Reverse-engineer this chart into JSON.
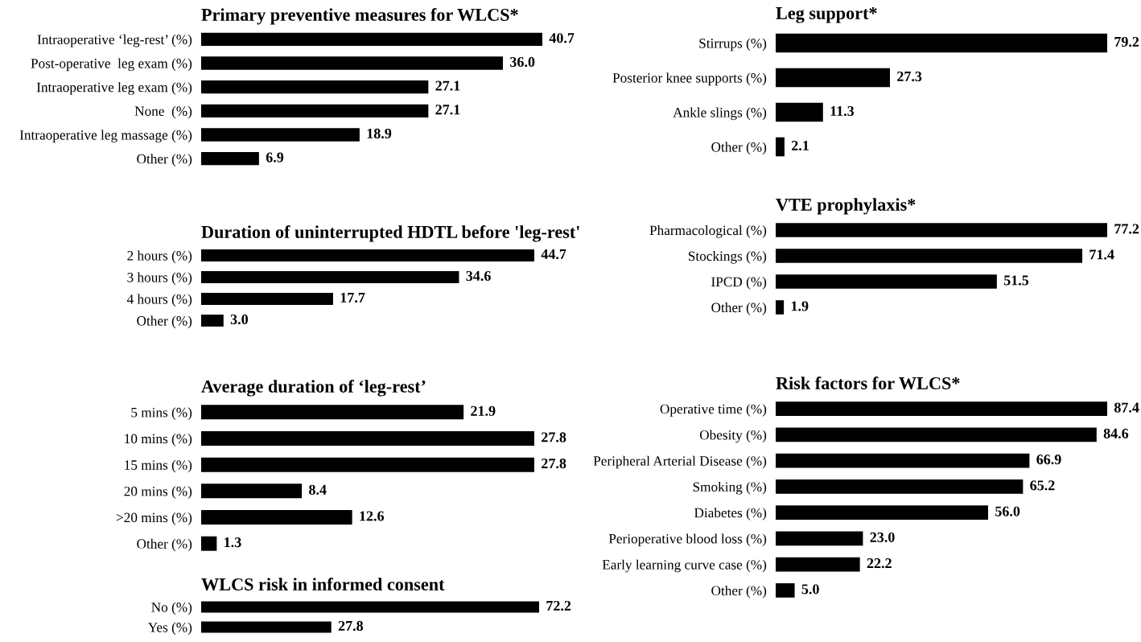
{
  "chart_data": [
    {
      "type": "bar",
      "orientation": "horizontal",
      "title": "Primary preventive measures for WLCS*",
      "categories": [
        "Intraoperative ‘leg-rest’ (%)",
        "Post-operative  leg exam (%)",
        "Intraoperative leg exam (%)",
        "None  (%)",
        "Intraoperative leg massage (%)",
        "Other (%)"
      ],
      "values": [
        40.7,
        36.0,
        27.1,
        27.1,
        18.9,
        6.9
      ],
      "value_labels": [
        "40.7",
        "36.0",
        "27.1",
        "27.1",
        "18.9",
        "6.9"
      ],
      "color": "#000000"
    },
    {
      "type": "bar",
      "orientation": "horizontal",
      "title": "Duration of uninterrupted HDTL before 'leg-rest'",
      "categories": [
        "2 hours (%)",
        "3 hours (%)",
        "4 hours (%)",
        "Other (%)"
      ],
      "values": [
        44.7,
        34.6,
        17.7,
        3.0
      ],
      "value_labels": [
        "44.7",
        "34.6",
        "17.7",
        "3.0"
      ],
      "color": "#000000"
    },
    {
      "type": "bar",
      "orientation": "horizontal",
      "title": "Average duration of ‘leg-rest’",
      "categories": [
        "5 mins (%)",
        "10 mins (%)",
        "15 mins (%)",
        "20 mins (%)",
        ">20 mins (%)",
        "Other (%)"
      ],
      "values": [
        21.9,
        27.8,
        27.8,
        8.4,
        12.6,
        1.3
      ],
      "color": "#000000",
      "data_labels": true
    },
    {
      "type": "bar",
      "orientation": "horizontal",
      "title": "WLCS risk in informed consent",
      "categories": [
        "No (%)",
        "Yes (%)"
      ],
      "values": [
        72.2,
        27.8
      ],
      "color": "#000000",
      "data_labels": true
    },
    {
      "type": "bar",
      "orientation": "horizontal",
      "title": "Leg support*",
      "categories": [
        "Stirrups (%)",
        "Posterior knee supports (%)",
        "Ankle slings (%)",
        "Other (%)"
      ],
      "values": [
        79.2,
        27.3,
        11.3,
        2.1
      ],
      "color": "#000000",
      "data_labels": true
    },
    {
      "type": "bar",
      "orientation": "horizontal",
      "title": "VTE prophylaxis*",
      "categories": [
        "Pharmacological (%)",
        "Stockings (%)",
        "IPCD (%)",
        "Other (%)"
      ],
      "values": [
        77.2,
        71.4,
        51.5,
        1.9
      ],
      "color": "#000000",
      "data_labels": true
    },
    {
      "type": "bar",
      "orientation": "horizontal",
      "title": "Risk factors for WLCS*",
      "categories": [
        "Operative time (%)",
        "Obesity (%)",
        "Peripheral Arterial Disease (%)",
        "Smoking (%)",
        "Diabetes (%)",
        "Perioperative blood loss (%)",
        "Early learning curve case (%)",
        "Other (%)"
      ],
      "values": [
        87.4,
        84.6,
        66.9,
        65.2,
        56.0,
        23.0,
        22.2,
        5.0
      ],
      "value_labels": [
        "87.4",
        "84.6",
        "66.9",
        "65.2",
        "56.0",
        "23.0",
        "22.2",
        "5.0"
      ],
      "color": "#000000"
    }
  ]
}
